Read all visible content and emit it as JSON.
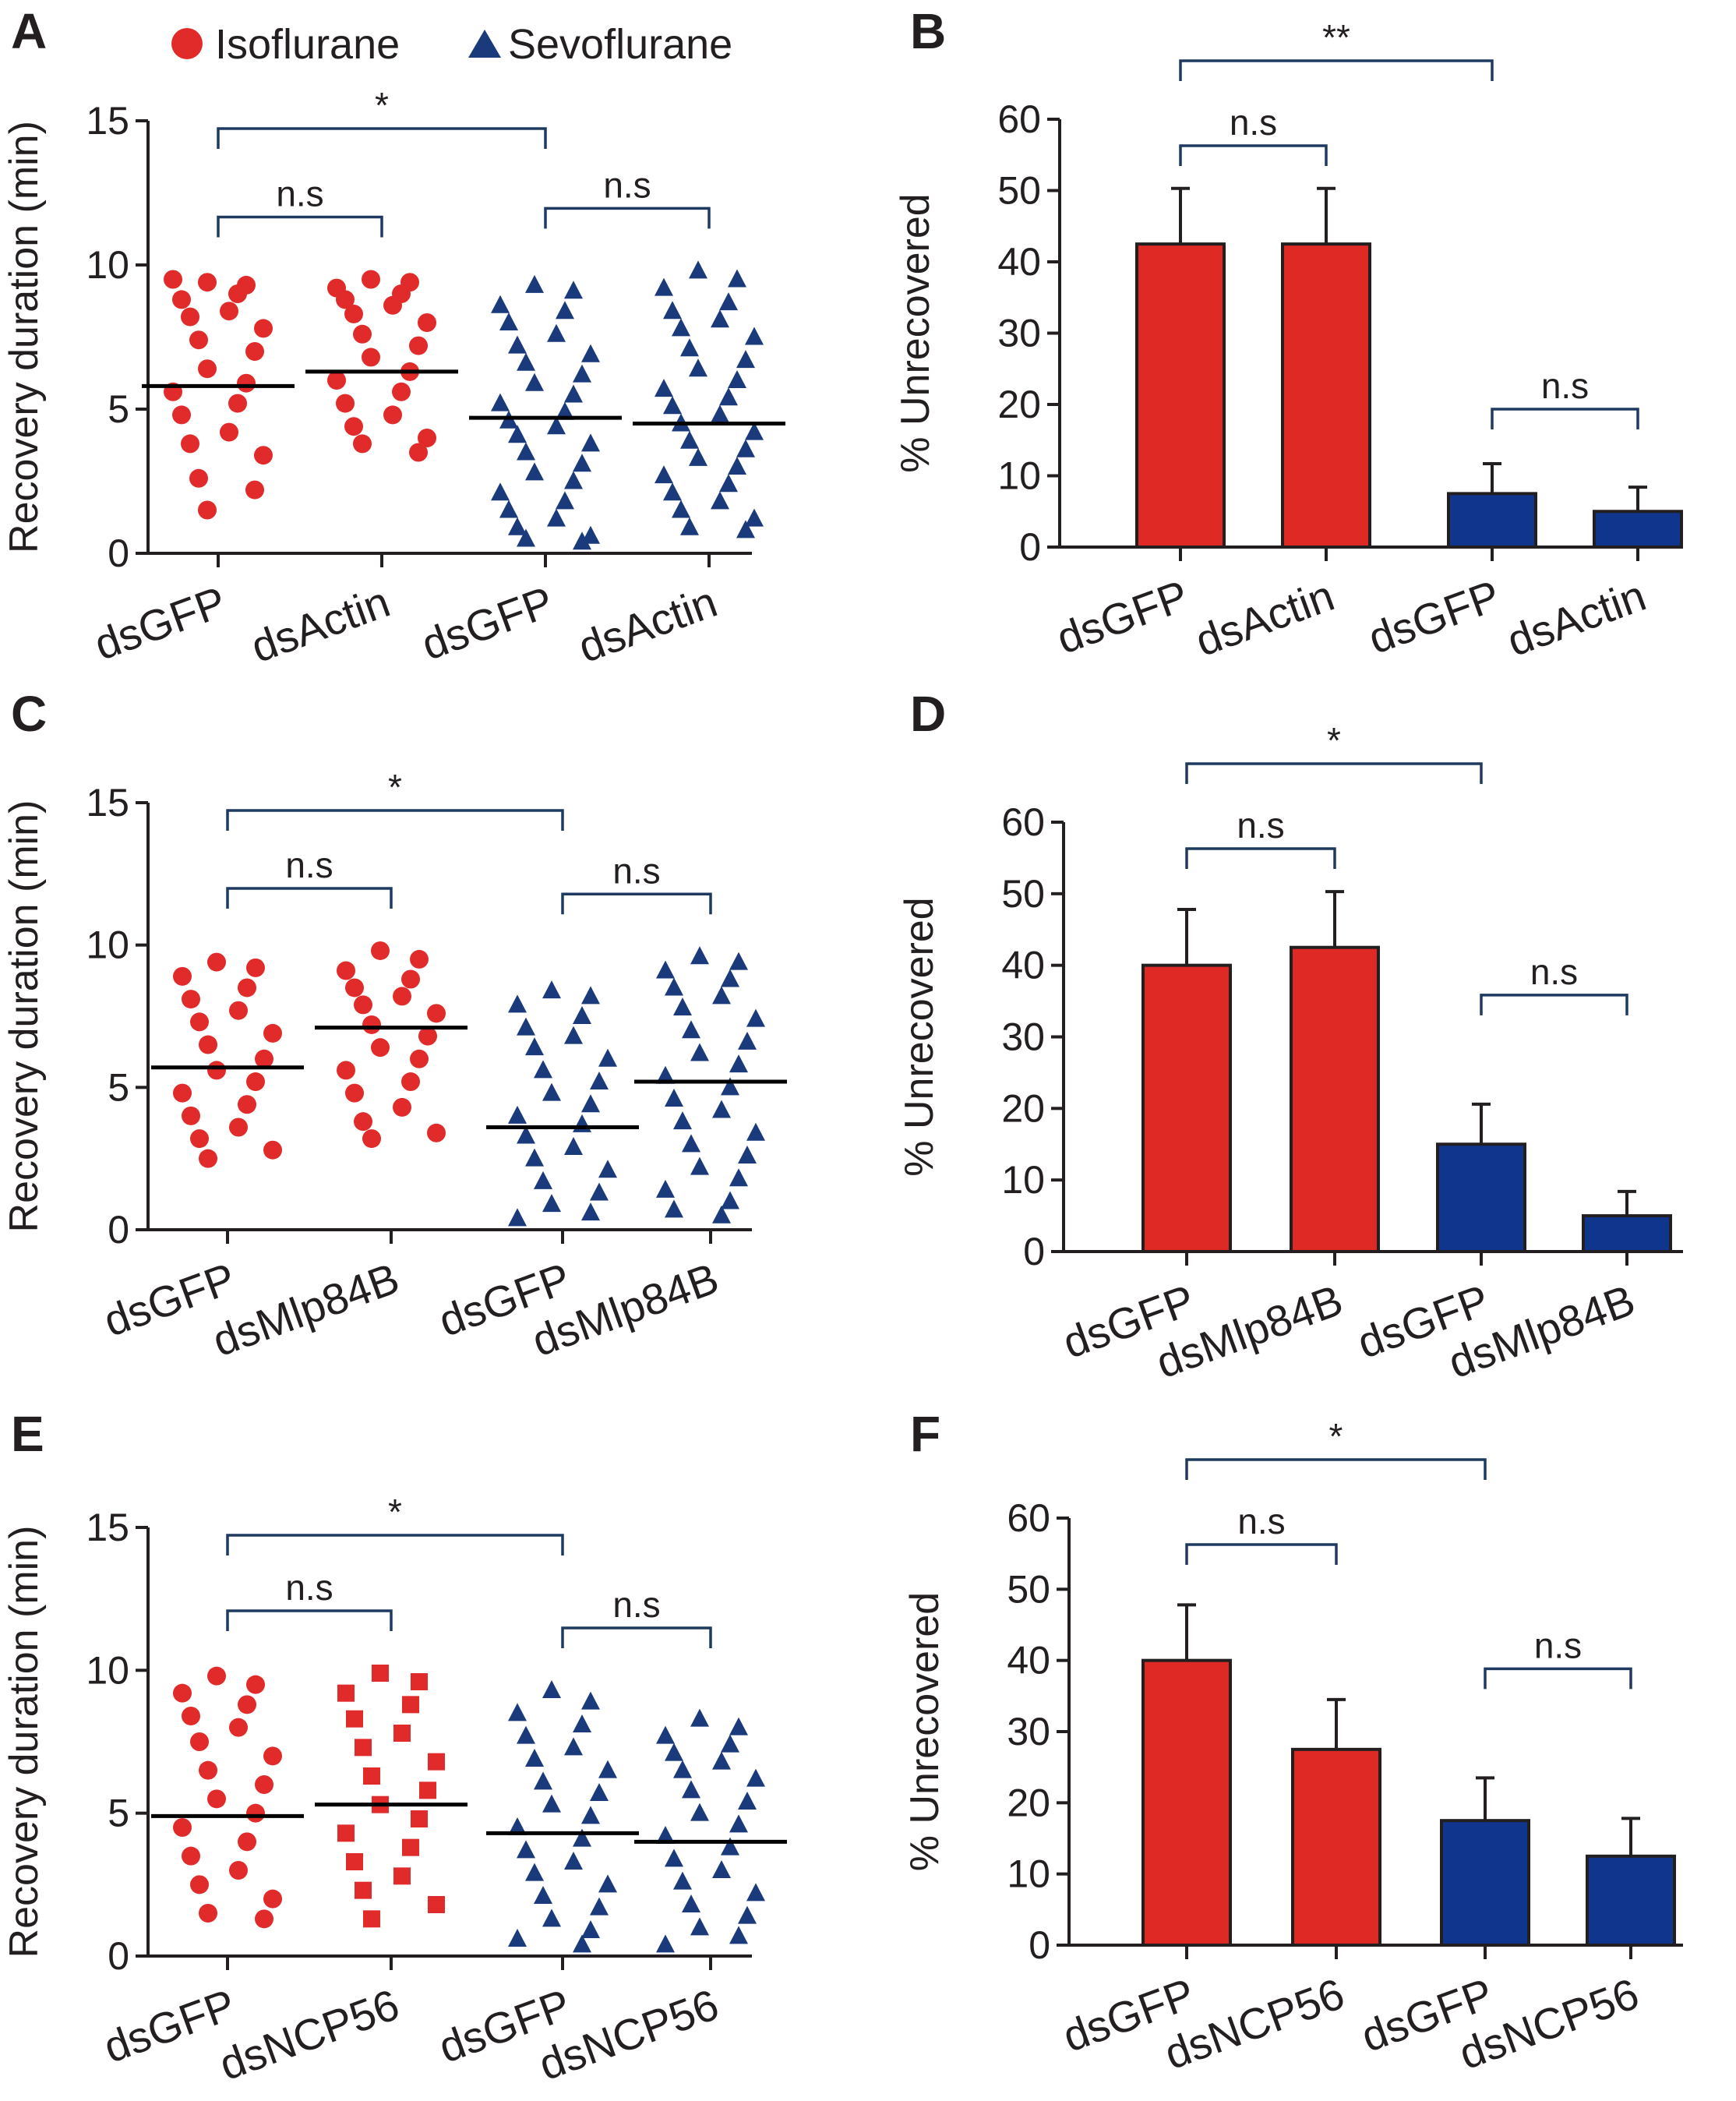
{
  "colors": {
    "isoflurane": "#e12b2b",
    "sevoflurane": "#1a3a7c",
    "bar_red": "#df2925",
    "bar_blue": "#10358c",
    "axis": "#231f20",
    "bracket": "#1f3a60"
  },
  "legend": {
    "items": [
      {
        "label": "Isoflurane",
        "marker": "circle",
        "color": "#e12b2b"
      },
      {
        "label": "Sevoflurane",
        "marker": "triangle",
        "color": "#1a3a7c"
      }
    ]
  },
  "chart_data": [
    {
      "panel": "A",
      "type": "scatter",
      "ylabel": "Recovery duration (min)",
      "ylim": [
        0,
        15
      ],
      "yticks": [
        0,
        5,
        10,
        15
      ],
      "categories": [
        "dsGFP",
        "dsActin",
        "dsGFP",
        "dsActin"
      ],
      "groups": [
        {
          "category": "dsGFP",
          "anesthetic": "Isoflurane",
          "marker": "circle",
          "median": 5.8,
          "values": [
            9.4,
            9.3,
            9.5,
            9.0,
            8.8,
            8.4,
            8.2,
            7.8,
            7.4,
            7.0,
            6.4,
            5.9,
            5.6,
            5.2,
            4.8,
            4.2,
            3.8,
            3.4,
            2.6,
            2.2,
            1.5
          ]
        },
        {
          "category": "dsActin",
          "anesthetic": "Isoflurane",
          "marker": "circle",
          "median": 6.3,
          "values": [
            9.5,
            9.4,
            9.2,
            9.0,
            8.8,
            8.6,
            8.3,
            8.0,
            7.6,
            7.2,
            6.8,
            6.3,
            6.0,
            5.6,
            5.2,
            4.8,
            4.4,
            4.0,
            3.8,
            3.5
          ]
        },
        {
          "category": "dsGFP",
          "anesthetic": "Sevoflurane",
          "marker": "triangle",
          "median": 4.7,
          "values": [
            9.3,
            9.1,
            8.6,
            8.4,
            8.0,
            7.6,
            7.2,
            6.9,
            6.6,
            6.2,
            5.9,
            5.5,
            5.2,
            4.9,
            4.6,
            4.4,
            4.1,
            3.8,
            3.5,
            3.1,
            2.8,
            2.5,
            2.1,
            1.8,
            1.5,
            1.2,
            0.9,
            0.6,
            0.5,
            0.4
          ]
        },
        {
          "category": "dsActin",
          "anesthetic": "Sevoflurane",
          "marker": "triangle",
          "median": 4.5,
          "values": [
            9.8,
            9.5,
            9.2,
            8.7,
            8.4,
            8.1,
            7.8,
            7.5,
            7.1,
            6.7,
            6.4,
            6.0,
            5.7,
            5.4,
            5.1,
            4.8,
            4.5,
            4.2,
            3.9,
            3.6,
            3.3,
            3.0,
            2.7,
            2.4,
            2.1,
            1.8,
            1.5,
            1.2,
            0.9,
            0.8
          ]
        }
      ],
      "brackets": [
        {
          "from": 0,
          "to": 1,
          "label": "n.s",
          "level": 0
        },
        {
          "from": 2,
          "to": 3,
          "label": "n.s",
          "level": 0
        },
        {
          "from": 0,
          "to": 2,
          "label": "*",
          "level": 1
        }
      ]
    },
    {
      "panel": "B",
      "type": "bar",
      "ylabel": "% Unrecovered",
      "ylim": [
        0,
        60
      ],
      "yticks": [
        0,
        10,
        20,
        30,
        40,
        50,
        60
      ],
      "categories": [
        "dsGFP",
        "dsActin",
        "dsGFP",
        "dsActin"
      ],
      "values": [
        42.5,
        42.5,
        7.5,
        5.0
      ],
      "errors": [
        7.8,
        7.8,
        4.2,
        3.4
      ],
      "bar_colors": [
        "red",
        "red",
        "blue",
        "blue"
      ],
      "brackets": [
        {
          "from": 0,
          "to": 1,
          "label": "n.s",
          "level": 0
        },
        {
          "from": 2,
          "to": 3,
          "label": "n.s",
          "level": 0
        },
        {
          "from": 0,
          "to": 2,
          "label": "**",
          "level": 1
        }
      ]
    },
    {
      "panel": "C",
      "type": "scatter",
      "ylabel": "Recovery duration (min)",
      "ylim": [
        0,
        15
      ],
      "yticks": [
        0,
        5,
        10,
        15
      ],
      "categories": [
        "dsGFP",
        "dsMlp84B",
        "dsGFP",
        "dsMlp84B"
      ],
      "groups": [
        {
          "category": "dsGFP",
          "anesthetic": "Isoflurane",
          "marker": "circle",
          "median": 5.7,
          "values": [
            9.4,
            9.2,
            8.9,
            8.5,
            8.1,
            7.7,
            7.3,
            6.9,
            6.5,
            6.0,
            5.6,
            5.2,
            4.8,
            4.4,
            4.0,
            3.6,
            3.2,
            2.8,
            2.5
          ]
        },
        {
          "category": "dsMlp84B",
          "anesthetic": "Isoflurane",
          "marker": "circle",
          "median": 7.1,
          "values": [
            9.8,
            9.5,
            9.1,
            8.8,
            8.5,
            8.2,
            7.9,
            7.6,
            7.2,
            6.8,
            6.4,
            6.0,
            5.6,
            5.2,
            4.8,
            4.3,
            3.8,
            3.4,
            3.2
          ]
        },
        {
          "category": "dsGFP",
          "anesthetic": "Sevoflurane",
          "marker": "triangle",
          "median": 3.6,
          "values": [
            8.4,
            8.2,
            7.9,
            7.5,
            7.1,
            6.8,
            6.4,
            6.0,
            5.6,
            5.2,
            4.8,
            4.4,
            4.0,
            3.7,
            3.3,
            2.9,
            2.5,
            2.1,
            1.7,
            1.3,
            0.9,
            0.6,
            0.4
          ]
        },
        {
          "category": "dsMlp84B",
          "anesthetic": "Sevoflurane",
          "marker": "triangle",
          "median": 5.2,
          "values": [
            9.6,
            9.4,
            9.1,
            8.8,
            8.5,
            8.2,
            7.8,
            7.4,
            7.0,
            6.6,
            6.2,
            5.8,
            5.4,
            5.0,
            4.6,
            4.2,
            3.8,
            3.4,
            3.0,
            2.6,
            2.2,
            1.8,
            1.4,
            1.0,
            0.7,
            0.5
          ]
        }
      ],
      "brackets": [
        {
          "from": 0,
          "to": 1,
          "label": "n.s",
          "level": 0
        },
        {
          "from": 2,
          "to": 3,
          "label": "n.s",
          "level": 0
        },
        {
          "from": 0,
          "to": 2,
          "label": "*",
          "level": 1
        }
      ]
    },
    {
      "panel": "D",
      "type": "bar",
      "ylabel": "% Unrecovered",
      "ylim": [
        0,
        60
      ],
      "yticks": [
        0,
        10,
        20,
        30,
        40,
        50,
        60
      ],
      "categories": [
        "dsGFP",
        "dsMlp84B",
        "dsGFP",
        "dsMlp84B"
      ],
      "values": [
        40.0,
        42.5,
        15.0,
        5.0
      ],
      "errors": [
        7.8,
        7.8,
        5.6,
        3.4
      ],
      "bar_colors": [
        "red",
        "red",
        "blue",
        "blue"
      ],
      "brackets": [
        {
          "from": 0,
          "to": 1,
          "label": "n.s",
          "level": 0
        },
        {
          "from": 2,
          "to": 3,
          "label": "n.s",
          "level": -1
        },
        {
          "from": 0,
          "to": 2,
          "label": "*",
          "level": 1
        }
      ]
    },
    {
      "panel": "E",
      "type": "scatter",
      "ylabel": "Recovery duration (min)",
      "ylim": [
        0,
        15
      ],
      "yticks": [
        0,
        5,
        10,
        15
      ],
      "categories": [
        "dsGFP",
        "dsNCP56",
        "dsGFP",
        "dsNCP56"
      ],
      "groups": [
        {
          "category": "dsGFP",
          "anesthetic": "Isoflurane",
          "marker": "circle",
          "median": 4.9,
          "values": [
            9.8,
            9.5,
            9.2,
            8.8,
            8.4,
            8.0,
            7.5,
            7.0,
            6.5,
            6.0,
            5.5,
            5.0,
            4.5,
            4.0,
            3.5,
            3.0,
            2.5,
            2.0,
            1.5,
            1.3
          ]
        },
        {
          "category": "dsNCP56",
          "anesthetic": "Isoflurane",
          "marker": "square",
          "median": 5.3,
          "values": [
            9.9,
            9.6,
            9.2,
            8.8,
            8.3,
            7.8,
            7.3,
            6.8,
            6.3,
            5.8,
            5.3,
            4.8,
            4.3,
            3.8,
            3.3,
            2.8,
            2.3,
            1.8,
            1.3
          ]
        },
        {
          "category": "dsGFP",
          "anesthetic": "Sevoflurane",
          "marker": "triangle",
          "median": 4.3,
          "values": [
            9.3,
            8.9,
            8.5,
            8.1,
            7.7,
            7.3,
            6.9,
            6.5,
            6.1,
            5.7,
            5.3,
            4.9,
            4.5,
            4.1,
            3.7,
            3.3,
            2.9,
            2.5,
            2.1,
            1.7,
            1.3,
            0.9,
            0.6,
            0.4
          ]
        },
        {
          "category": "dsNCP56",
          "anesthetic": "Sevoflurane",
          "marker": "triangle",
          "median": 4.0,
          "values": [
            8.3,
            8.0,
            7.7,
            7.4,
            7.1,
            6.8,
            6.5,
            6.2,
            5.8,
            5.4,
            5.0,
            4.6,
            4.2,
            3.8,
            3.4,
            3.0,
            2.6,
            2.2,
            1.8,
            1.4,
            1.0,
            0.7,
            0.4
          ]
        }
      ],
      "brackets": [
        {
          "from": 0,
          "to": 1,
          "label": "n.s",
          "level": 0
        },
        {
          "from": 2,
          "to": 3,
          "label": "n.s",
          "level": 0
        },
        {
          "from": 0,
          "to": 2,
          "label": "*",
          "level": 1
        }
      ]
    },
    {
      "panel": "F",
      "type": "bar",
      "ylabel": "% Unrecovered",
      "ylim": [
        0,
        60
      ],
      "yticks": [
        0,
        10,
        20,
        30,
        40,
        50,
        60
      ],
      "categories": [
        "dsGFP",
        "dsNCP56",
        "dsGFP",
        "dsNCP56"
      ],
      "values": [
        40.0,
        27.5,
        17.5,
        12.5
      ],
      "errors": [
        7.8,
        7.0,
        6.0,
        5.3
      ],
      "bar_colors": [
        "red",
        "red",
        "blue",
        "blue"
      ],
      "brackets": [
        {
          "from": 0,
          "to": 1,
          "label": "n.s",
          "level": 0
        },
        {
          "from": 2,
          "to": 3,
          "label": "n.s",
          "level": -1
        },
        {
          "from": 0,
          "to": 2,
          "label": "*",
          "level": 1
        }
      ]
    }
  ]
}
